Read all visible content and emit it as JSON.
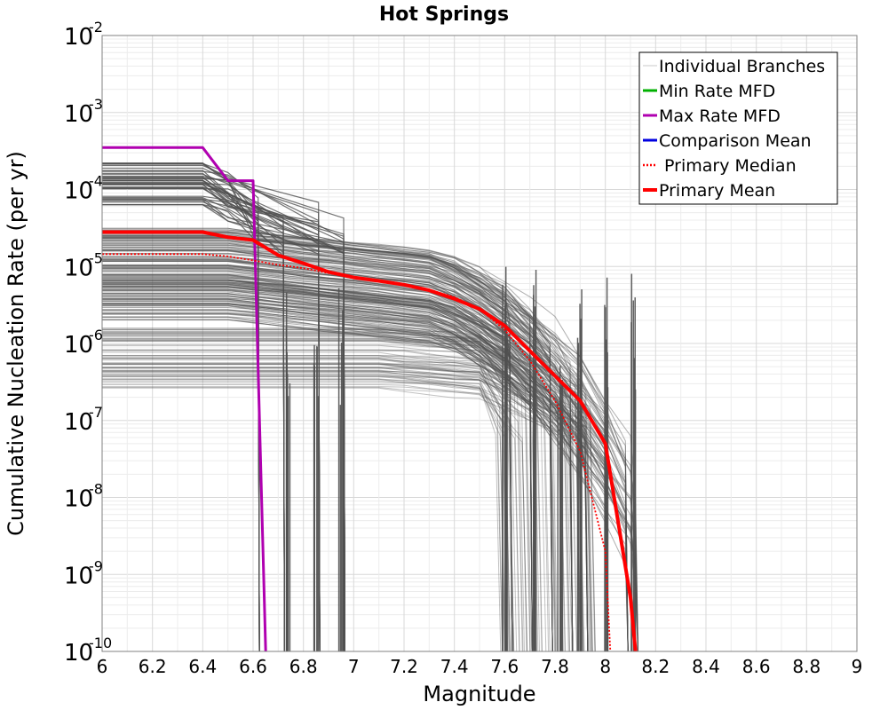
{
  "chart_data": {
    "type": "line",
    "title": "Hot Springs",
    "xlabel": "Magnitude",
    "ylabel": "Cumulative Nucleation Rate (per yr)",
    "xlim": [
      6,
      9
    ],
    "ylim_log10": [
      -10,
      -2
    ],
    "x_ticks": [
      "6",
      "6.2",
      "6.4",
      "6.6",
      "6.8",
      "7",
      "7.2",
      "7.4",
      "7.6",
      "7.8",
      "8",
      "8.2",
      "8.4",
      "8.6",
      "8.8",
      "9"
    ],
    "y_ticks": [
      {
        "base": "10",
        "exp": "-2"
      },
      {
        "base": "10",
        "exp": "-3"
      },
      {
        "base": "10",
        "exp": "-4"
      },
      {
        "base": "10",
        "exp": "-5"
      },
      {
        "base": "10",
        "exp": "-6"
      },
      {
        "base": "10",
        "exp": "-7"
      },
      {
        "base": "10",
        "exp": "-8"
      },
      {
        "base": "10",
        "exp": "-9"
      },
      {
        "base": "10",
        "exp": "-10"
      }
    ],
    "grid": true,
    "legend_position": "top-right",
    "legend": [
      {
        "label": "Individual Branches",
        "color": "#c8c8c8",
        "style": "solid"
      },
      {
        "label": "Min Rate MFD",
        "color": "#00b000",
        "style": "solid"
      },
      {
        "label": "Max Rate MFD",
        "color": "#b000b0",
        "style": "solid"
      },
      {
        "label": "Comparison Mean",
        "color": "#0000e0",
        "style": "solid"
      },
      {
        "label": " Primary Median",
        "color": "#ff0000",
        "style": "dotted"
      },
      {
        "label": "Primary Mean",
        "color": "#ff0000",
        "style": "solid"
      }
    ],
    "series": [
      {
        "name": "Max Rate MFD",
        "color": "#b000b0",
        "x": [
          6.0,
          6.4,
          6.5,
          6.6,
          6.65
        ],
        "y": [
          0.00035,
          0.00035,
          0.00013,
          0.00013,
          1e-10
        ]
      },
      {
        "name": "Primary Median",
        "color": "#ff0000",
        "x": [
          6.0,
          6.4,
          6.5,
          6.6,
          6.7,
          6.8,
          6.9,
          7.0,
          7.1,
          7.2,
          7.3,
          7.4,
          7.5,
          7.6,
          7.7,
          7.8,
          7.9,
          8.0,
          8.02
        ],
        "y": [
          1.45e-05,
          1.45e-05,
          1.35e-05,
          1.2e-05,
          1.05e-05,
          9.5e-06,
          8.2e-06,
          7.2e-06,
          6.5e-06,
          5.8e-06,
          5e-06,
          4e-06,
          2.8e-06,
          1.5e-06,
          6e-07,
          1.8e-07,
          4e-08,
          2e-09,
          1e-10
        ]
      },
      {
        "name": "Primary Mean",
        "color": "#ff0000",
        "x": [
          6.0,
          6.4,
          6.5,
          6.6,
          6.7,
          6.8,
          6.9,
          7.0,
          7.1,
          7.2,
          7.3,
          7.4,
          7.5,
          7.6,
          7.7,
          7.8,
          7.9,
          8.0,
          8.1,
          8.12
        ],
        "y": [
          2.8e-05,
          2.8e-05,
          2.4e-05,
          2.2e-05,
          1.4e-05,
          1.1e-05,
          8.5e-06,
          7.2e-06,
          6.5e-06,
          5.8e-06,
          4.9e-06,
          3.8e-06,
          2.8e-06,
          1.7e-06,
          8e-07,
          3.8e-07,
          1.8e-07,
          5e-08,
          5e-10,
          1e-10
        ]
      }
    ],
    "branch_summary": {
      "count": 900,
      "color": "#505050",
      "description": "Individual logic-tree branch MFDs"
    }
  }
}
